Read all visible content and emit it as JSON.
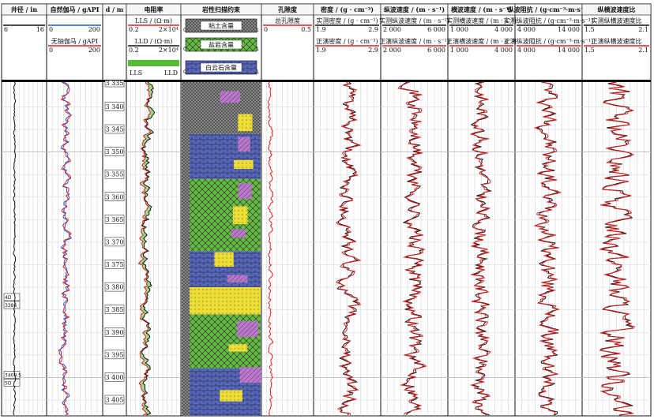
{
  "chart_data": {
    "type": "line",
    "depth": {
      "ticks": [
        3340,
        3345,
        3350,
        3355,
        3360,
        3365,
        3370,
        3375,
        3380,
        3385,
        3390,
        3395,
        3400,
        3405
      ],
      "top_label": "3 335"
    },
    "tracks": [
      {
        "key": "caliper",
        "title": "井径 / in",
        "curves": [
          {
            "name": "",
            "min": "6",
            "max": "16",
            "color": "#111111"
          }
        ]
      },
      {
        "key": "gr",
        "title": "自然伽马 / gAPI",
        "curves": [
          {
            "name": "",
            "min": "0",
            "max": "200",
            "color": "#2255dd"
          },
          {
            "name": "无铀伽马 / gAPI",
            "min": "0",
            "max": "200",
            "color": "#e02020"
          }
        ]
      },
      {
        "key": "depth",
        "title": "d / m"
      },
      {
        "key": "res",
        "title": "电阻率",
        "curves": [
          {
            "name": "LLS / (Ω·m)",
            "min": "0.2",
            "max": "2×10⁴",
            "color": "#e02020"
          },
          {
            "name": "LLD / (Ω·m)",
            "min": "0.2",
            "max": "2×10⁴",
            "color": "#111111"
          }
        ],
        "fill": {
          "left": "LLS",
          "right": "LLD",
          "color": "#55bb33"
        }
      },
      {
        "key": "litho",
        "title": "岩性扫描约束",
        "components": [
          {
            "name": "粘土含量",
            "color": "#888888",
            "min": "0",
            "max": "1"
          },
          {
            "name": "盐岩含量",
            "color": "#66bb44",
            "min": "0",
            "max": "1"
          },
          {
            "name": "白云石含量",
            "color": "#5566bb",
            "min": "0",
            "max": "1"
          }
        ],
        "extra_colors": [
          "#eedd33",
          "#bb77cc",
          "#3388cc"
        ]
      },
      {
        "key": "por",
        "title": "孔隙度",
        "curves": [
          {
            "name": "总孔隙度",
            "min": "0",
            "max": "0.5",
            "color": "#e02020"
          }
        ]
      },
      {
        "key": "den",
        "title": "密度 / (g · cm⁻³)",
        "curves": [
          {
            "name": "实测密度 / (g · cm⁻³)",
            "min": "1.9",
            "max": "2.9",
            "color": "#111111"
          },
          {
            "name": "正演密度 / (g · cm⁻³)",
            "min": "1.9",
            "max": "2.9",
            "color": "#e02020"
          }
        ]
      },
      {
        "key": "vp",
        "title": "纵波速度 / (m · s⁻¹)",
        "curves": [
          {
            "name": "实测纵波速度 / (m · s⁻¹)",
            "min": "2 000",
            "max": "6 000",
            "color": "#111111"
          },
          {
            "name": "正演纵波速度 / (m · s⁻¹)",
            "min": "2 000",
            "max": "6 000",
            "color": "#e02020"
          }
        ]
      },
      {
        "key": "vs",
        "title": "横波速度 / (m · s⁻¹)",
        "curves": [
          {
            "name": "实测横波速度 / (m · s⁻¹)",
            "min": "1 000",
            "max": "4 000",
            "color": "#111111"
          },
          {
            "name": "正演横波速度 / (m · s⁻¹)",
            "min": "1 000",
            "max": "4 000",
            "color": "#e02020"
          }
        ]
      },
      {
        "key": "ai",
        "title": "纵波阻抗 / (g·cm⁻³·m·s⁻¹)",
        "curves": [
          {
            "name": "实测纵波阻抗 / (g·cm⁻³·m·s⁻¹)",
            "min": "4 000",
            "max": "14 000",
            "color": "#111111"
          },
          {
            "name": "正演纵波阻抗 / (g·cm⁻³·m·s⁻¹)",
            "min": "4 000",
            "max": "14 000",
            "color": "#e02020"
          }
        ]
      },
      {
        "key": "vpvs",
        "title": "纵横波速度比",
        "curves": [
          {
            "name": "实测纵横波速度比",
            "min": "1.5",
            "max": "2.1",
            "color": "#111111"
          },
          {
            "name": "正演纵横波速度比",
            "min": "1.5",
            "max": "2.1",
            "color": "#e02020"
          }
        ]
      }
    ],
    "annotations": [
      "4D",
      "3384",
      "3400.5",
      "5D"
    ]
  }
}
